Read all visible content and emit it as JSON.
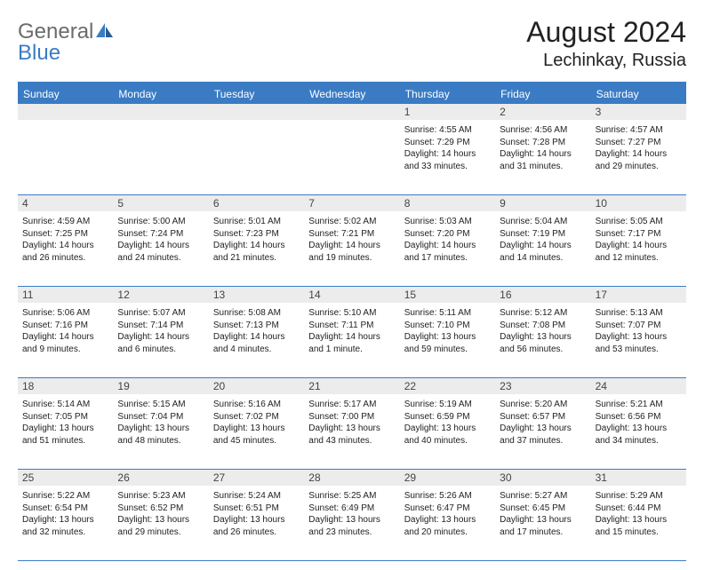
{
  "brand": {
    "part1": "General",
    "part2": "Blue"
  },
  "title": "August 2024",
  "location": "Lechinkay, Russia",
  "colors": {
    "brand_blue": "#3a7bc4",
    "header_band": "#3a7bc4",
    "daynum_bg": "#ececec",
    "text": "#222222",
    "grey_text": "#6b6b6b",
    "bg": "#ffffff"
  },
  "fonts": {
    "base": "Arial",
    "title_size_pt": 24,
    "location_size_pt": 15,
    "header_size_pt": 9,
    "body_size_pt": 7.5
  },
  "day_names": [
    "Sunday",
    "Monday",
    "Tuesday",
    "Wednesday",
    "Thursday",
    "Friday",
    "Saturday"
  ],
  "weeks": [
    [
      null,
      null,
      null,
      null,
      {
        "n": "1",
        "sr": "4:55 AM",
        "ss": "7:29 PM",
        "dl": "14 hours and 33 minutes."
      },
      {
        "n": "2",
        "sr": "4:56 AM",
        "ss": "7:28 PM",
        "dl": "14 hours and 31 minutes."
      },
      {
        "n": "3",
        "sr": "4:57 AM",
        "ss": "7:27 PM",
        "dl": "14 hours and 29 minutes."
      }
    ],
    [
      {
        "n": "4",
        "sr": "4:59 AM",
        "ss": "7:25 PM",
        "dl": "14 hours and 26 minutes."
      },
      {
        "n": "5",
        "sr": "5:00 AM",
        "ss": "7:24 PM",
        "dl": "14 hours and 24 minutes."
      },
      {
        "n": "6",
        "sr": "5:01 AM",
        "ss": "7:23 PM",
        "dl": "14 hours and 21 minutes."
      },
      {
        "n": "7",
        "sr": "5:02 AM",
        "ss": "7:21 PM",
        "dl": "14 hours and 19 minutes."
      },
      {
        "n": "8",
        "sr": "5:03 AM",
        "ss": "7:20 PM",
        "dl": "14 hours and 17 minutes."
      },
      {
        "n": "9",
        "sr": "5:04 AM",
        "ss": "7:19 PM",
        "dl": "14 hours and 14 minutes."
      },
      {
        "n": "10",
        "sr": "5:05 AM",
        "ss": "7:17 PM",
        "dl": "14 hours and 12 minutes."
      }
    ],
    [
      {
        "n": "11",
        "sr": "5:06 AM",
        "ss": "7:16 PM",
        "dl": "14 hours and 9 minutes."
      },
      {
        "n": "12",
        "sr": "5:07 AM",
        "ss": "7:14 PM",
        "dl": "14 hours and 6 minutes."
      },
      {
        "n": "13",
        "sr": "5:08 AM",
        "ss": "7:13 PM",
        "dl": "14 hours and 4 minutes."
      },
      {
        "n": "14",
        "sr": "5:10 AM",
        "ss": "7:11 PM",
        "dl": "14 hours and 1 minute."
      },
      {
        "n": "15",
        "sr": "5:11 AM",
        "ss": "7:10 PM",
        "dl": "13 hours and 59 minutes."
      },
      {
        "n": "16",
        "sr": "5:12 AM",
        "ss": "7:08 PM",
        "dl": "13 hours and 56 minutes."
      },
      {
        "n": "17",
        "sr": "5:13 AM",
        "ss": "7:07 PM",
        "dl": "13 hours and 53 minutes."
      }
    ],
    [
      {
        "n": "18",
        "sr": "5:14 AM",
        "ss": "7:05 PM",
        "dl": "13 hours and 51 minutes."
      },
      {
        "n": "19",
        "sr": "5:15 AM",
        "ss": "7:04 PM",
        "dl": "13 hours and 48 minutes."
      },
      {
        "n": "20",
        "sr": "5:16 AM",
        "ss": "7:02 PM",
        "dl": "13 hours and 45 minutes."
      },
      {
        "n": "21",
        "sr": "5:17 AM",
        "ss": "7:00 PM",
        "dl": "13 hours and 43 minutes."
      },
      {
        "n": "22",
        "sr": "5:19 AM",
        "ss": "6:59 PM",
        "dl": "13 hours and 40 minutes."
      },
      {
        "n": "23",
        "sr": "5:20 AM",
        "ss": "6:57 PM",
        "dl": "13 hours and 37 minutes."
      },
      {
        "n": "24",
        "sr": "5:21 AM",
        "ss": "6:56 PM",
        "dl": "13 hours and 34 minutes."
      }
    ],
    [
      {
        "n": "25",
        "sr": "5:22 AM",
        "ss": "6:54 PM",
        "dl": "13 hours and 32 minutes."
      },
      {
        "n": "26",
        "sr": "5:23 AM",
        "ss": "6:52 PM",
        "dl": "13 hours and 29 minutes."
      },
      {
        "n": "27",
        "sr": "5:24 AM",
        "ss": "6:51 PM",
        "dl": "13 hours and 26 minutes."
      },
      {
        "n": "28",
        "sr": "5:25 AM",
        "ss": "6:49 PM",
        "dl": "13 hours and 23 minutes."
      },
      {
        "n": "29",
        "sr": "5:26 AM",
        "ss": "6:47 PM",
        "dl": "13 hours and 20 minutes."
      },
      {
        "n": "30",
        "sr": "5:27 AM",
        "ss": "6:45 PM",
        "dl": "13 hours and 17 minutes."
      },
      {
        "n": "31",
        "sr": "5:29 AM",
        "ss": "6:44 PM",
        "dl": "13 hours and 15 minutes."
      }
    ]
  ],
  "labels": {
    "sunrise": "Sunrise:",
    "sunset": "Sunset:",
    "daylight": "Daylight:"
  }
}
